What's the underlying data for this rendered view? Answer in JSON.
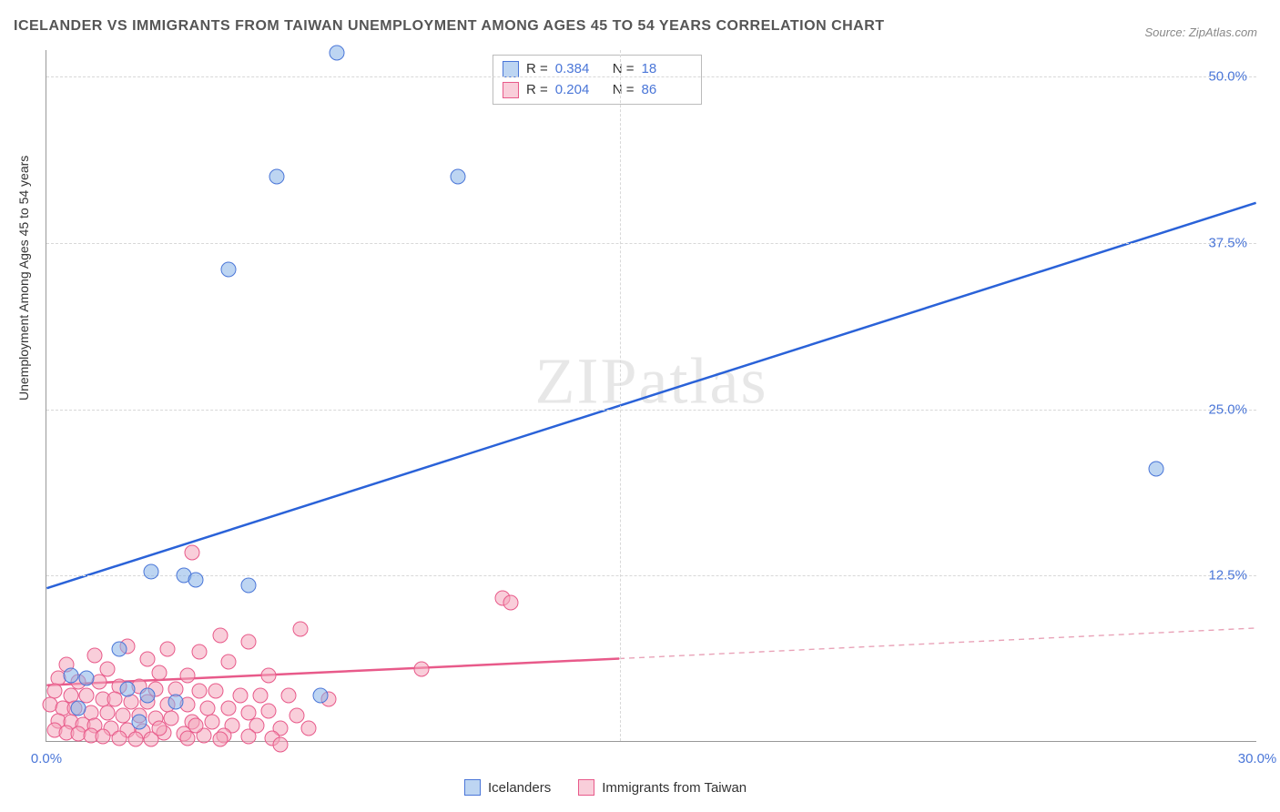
{
  "title": "ICELANDER VS IMMIGRANTS FROM TAIWAN UNEMPLOYMENT AMONG AGES 45 TO 54 YEARS CORRELATION CHART",
  "source": "Source: ZipAtlas.com",
  "y_axis_label": "Unemployment Among Ages 45 to 54 years",
  "watermark": "ZIPatlas",
  "chart": {
    "type": "scatter",
    "xlim": [
      0,
      30
    ],
    "ylim": [
      0,
      52
    ],
    "x_ticks": [
      {
        "v": 0,
        "l": "0.0%"
      },
      {
        "v": 30,
        "l": "30.0%"
      }
    ],
    "y_ticks": [
      {
        "v": 12.5,
        "l": "12.5%"
      },
      {
        "v": 25,
        "l": "25.0%"
      },
      {
        "v": 37.5,
        "l": "37.5%"
      },
      {
        "v": 50,
        "l": "50.0%"
      }
    ],
    "x_gridline_at": 14.2,
    "background_color": "#ffffff",
    "grid_color": "#d8d8d8",
    "axis_color": "#999999",
    "tick_label_color": "#4a76d8",
    "title_color": "#555555",
    "title_fontsize": 16,
    "label_fontsize": 14,
    "tick_fontsize": 15,
    "marker_size": 17
  },
  "series": {
    "blue": {
      "label": "Icelanders",
      "color_fill": "rgba(135,178,232,0.55)",
      "color_stroke": "#4a76d8",
      "R": "0.384",
      "N": "18",
      "trend": {
        "x1": 0,
        "y1": 11.5,
        "x2": 30,
        "y2": 40.5,
        "dash": false,
        "width": 2.5,
        "color": "#2a62d8"
      },
      "points": [
        {
          "x": 7.2,
          "y": 51.8
        },
        {
          "x": 5.7,
          "y": 42.5
        },
        {
          "x": 10.2,
          "y": 42.5
        },
        {
          "x": 4.5,
          "y": 35.5
        },
        {
          "x": 27.5,
          "y": 20.5
        },
        {
          "x": 2.6,
          "y": 12.8
        },
        {
          "x": 3.4,
          "y": 12.5
        },
        {
          "x": 3.7,
          "y": 12.2
        },
        {
          "x": 5.0,
          "y": 11.8
        },
        {
          "x": 1.8,
          "y": 7.0
        },
        {
          "x": 0.6,
          "y": 5.0
        },
        {
          "x": 1.0,
          "y": 4.8
        },
        {
          "x": 2.0,
          "y": 4.0
        },
        {
          "x": 2.5,
          "y": 3.5
        },
        {
          "x": 3.2,
          "y": 3.0
        },
        {
          "x": 6.8,
          "y": 3.5
        },
        {
          "x": 2.3,
          "y": 1.5
        },
        {
          "x": 0.8,
          "y": 2.5
        }
      ]
    },
    "pink": {
      "label": "Immigrants from Taiwan",
      "color_fill": "rgba(244,166,188,0.55)",
      "color_stroke": "#e85a8a",
      "R": "0.204",
      "N": "86",
      "trend_solid": {
        "x1": 0,
        "y1": 4.2,
        "x2": 14.2,
        "y2": 6.2,
        "width": 2.5,
        "color": "#e85a8a"
      },
      "trend_dash": {
        "x1": 14.2,
        "y1": 6.2,
        "x2": 30,
        "y2": 8.5,
        "width": 1.4,
        "color": "#e9a3b8"
      },
      "points": [
        {
          "x": 3.6,
          "y": 14.2
        },
        {
          "x": 11.3,
          "y": 10.8
        },
        {
          "x": 11.5,
          "y": 10.5
        },
        {
          "x": 6.3,
          "y": 8.5
        },
        {
          "x": 4.3,
          "y": 8.0
        },
        {
          "x": 5.0,
          "y": 7.5
        },
        {
          "x": 2.0,
          "y": 7.2
        },
        {
          "x": 3.0,
          "y": 7.0
        },
        {
          "x": 3.8,
          "y": 6.8
        },
        {
          "x": 1.2,
          "y": 6.5
        },
        {
          "x": 2.5,
          "y": 6.2
        },
        {
          "x": 4.5,
          "y": 6.0
        },
        {
          "x": 0.5,
          "y": 5.8
        },
        {
          "x": 1.5,
          "y": 5.5
        },
        {
          "x": 2.8,
          "y": 5.2
        },
        {
          "x": 3.5,
          "y": 5.0
        },
        {
          "x": 5.5,
          "y": 5.0
        },
        {
          "x": 9.3,
          "y": 5.5
        },
        {
          "x": 0.3,
          "y": 4.8
        },
        {
          "x": 0.8,
          "y": 4.5
        },
        {
          "x": 1.3,
          "y": 4.5
        },
        {
          "x": 1.8,
          "y": 4.2
        },
        {
          "x": 2.3,
          "y": 4.2
        },
        {
          "x": 2.7,
          "y": 4.0
        },
        {
          "x": 3.2,
          "y": 4.0
        },
        {
          "x": 3.8,
          "y": 3.8
        },
        {
          "x": 4.2,
          "y": 3.8
        },
        {
          "x": 4.8,
          "y": 3.5
        },
        {
          "x": 5.3,
          "y": 3.5
        },
        {
          "x": 6.0,
          "y": 3.5
        },
        {
          "x": 7.0,
          "y": 3.2
        },
        {
          "x": 0.2,
          "y": 3.8
        },
        {
          "x": 0.6,
          "y": 3.5
        },
        {
          "x": 1.0,
          "y": 3.5
        },
        {
          "x": 1.4,
          "y": 3.2
        },
        {
          "x": 1.7,
          "y": 3.2
        },
        {
          "x": 2.1,
          "y": 3.0
        },
        {
          "x": 2.5,
          "y": 3.0
        },
        {
          "x": 3.0,
          "y": 2.8
        },
        {
          "x": 3.5,
          "y": 2.8
        },
        {
          "x": 4.0,
          "y": 2.5
        },
        {
          "x": 4.5,
          "y": 2.5
        },
        {
          "x": 5.0,
          "y": 2.2
        },
        {
          "x": 5.5,
          "y": 2.3
        },
        {
          "x": 6.2,
          "y": 2.0
        },
        {
          "x": 0.1,
          "y": 2.8
        },
        {
          "x": 0.4,
          "y": 2.5
        },
        {
          "x": 0.7,
          "y": 2.5
        },
        {
          "x": 1.1,
          "y": 2.2
        },
        {
          "x": 1.5,
          "y": 2.2
        },
        {
          "x": 1.9,
          "y": 2.0
        },
        {
          "x": 2.3,
          "y": 2.0
        },
        {
          "x": 2.7,
          "y": 1.8
        },
        {
          "x": 3.1,
          "y": 1.8
        },
        {
          "x": 3.6,
          "y": 1.5
        },
        {
          "x": 4.1,
          "y": 1.5
        },
        {
          "x": 4.6,
          "y": 1.2
        },
        {
          "x": 5.2,
          "y": 1.2
        },
        {
          "x": 5.8,
          "y": 1.0
        },
        {
          "x": 6.5,
          "y": 1.0
        },
        {
          "x": 0.3,
          "y": 1.6
        },
        {
          "x": 0.6,
          "y": 1.5
        },
        {
          "x": 0.9,
          "y": 1.3
        },
        {
          "x": 1.2,
          "y": 1.2
        },
        {
          "x": 1.6,
          "y": 1.0
        },
        {
          "x": 2.0,
          "y": 0.9
        },
        {
          "x": 2.4,
          "y": 0.8
        },
        {
          "x": 2.9,
          "y": 0.7
        },
        {
          "x": 3.4,
          "y": 0.6
        },
        {
          "x": 3.9,
          "y": 0.5
        },
        {
          "x": 4.4,
          "y": 0.5
        },
        {
          "x": 5.0,
          "y": 0.4
        },
        {
          "x": 5.6,
          "y": 0.3
        },
        {
          "x": 0.2,
          "y": 0.9
        },
        {
          "x": 0.5,
          "y": 0.7
        },
        {
          "x": 0.8,
          "y": 0.6
        },
        {
          "x": 1.1,
          "y": 0.5
        },
        {
          "x": 1.4,
          "y": 0.4
        },
        {
          "x": 1.8,
          "y": 0.3
        },
        {
          "x": 2.2,
          "y": 0.2
        },
        {
          "x": 2.6,
          "y": 0.2
        },
        {
          "x": 3.5,
          "y": 0.3
        },
        {
          "x": 4.3,
          "y": 0.2
        },
        {
          "x": 5.8,
          "y": -0.2
        },
        {
          "x": 2.8,
          "y": 1.0
        },
        {
          "x": 3.7,
          "y": 1.2
        }
      ]
    }
  },
  "stats_labels": {
    "R": "R =",
    "N": "N ="
  }
}
